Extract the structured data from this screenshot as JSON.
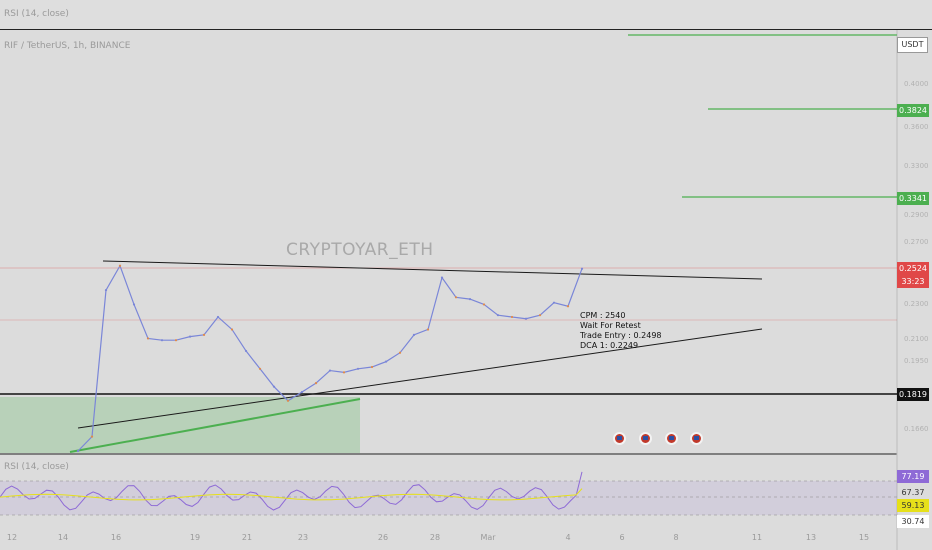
{
  "header": {
    "indicator_title": "RSI (14, close)",
    "symbol_line": "RIF / TetherUS, 1h, BINANCE"
  },
  "watermark": "CRYPTOYAR_ETH",
  "annotation": {
    "lines": [
      "CPM : 2540",
      "Wait For Retest",
      "Trade Entry : 0.2498",
      "DCA 1: 0.2249"
    ]
  },
  "price_axis": {
    "currency": "USDT",
    "ticks": [
      "0.4000",
      "0.3600",
      "0.3300",
      "0.2900",
      "0.2700",
      "0.2300",
      "0.2100",
      "0.1950",
      "0.1660"
    ],
    "badges": {
      "target1": "0.3824",
      "target2": "0.3341",
      "last_price": "0.2524",
      "countdown": "33:23",
      "support": "0.1819"
    }
  },
  "rsi_panel": {
    "label": "RSI (14, close)",
    "badges": {
      "rsi": "77.19",
      "upper": "67.37",
      "ma": "59.13",
      "lower": "30.74"
    }
  },
  "time_axis": {
    "ticks": [
      "12",
      "14",
      "16",
      "19",
      "21",
      "23",
      "26",
      "28",
      "Mar",
      "4",
      "6",
      "8",
      "11",
      "13",
      "15"
    ]
  },
  "colors": {
    "accent_green": "#4caf50",
    "price_red": "#e04848",
    "rsi_purple": "#8e6ad6",
    "ma_yellow": "#e6e01a"
  },
  "chart_data": {
    "type": "line",
    "title": "RIF / TetherUS, 1h, BINANCE",
    "ylabel": "USDT",
    "series": [
      {
        "values": [
          0.166,
          0.17,
          0.24,
          0.255,
          0.232,
          0.213,
          0.212,
          0.212,
          0.214,
          0.215,
          0.225,
          0.218,
          0.206,
          0.196,
          0.186,
          0.18,
          0.183,
          0.188,
          0.195,
          0.194,
          0.196,
          0.197,
          0.2,
          0.205,
          0.215,
          0.218,
          0.247,
          0.236,
          0.235,
          0.232,
          0.226,
          0.225,
          0.224,
          0.226,
          0.233,
          0.231,
          0.252
        ]
      }
    ],
    "levels": {
      "targets": [
        0.3824,
        0.3341
      ],
      "last_price": 0.2524,
      "support": 0.1819
    },
    "rsi": {
      "value": 77.19,
      "ma": 59.13,
      "band_upper": 67.37,
      "band_lower": 30.74
    }
  }
}
